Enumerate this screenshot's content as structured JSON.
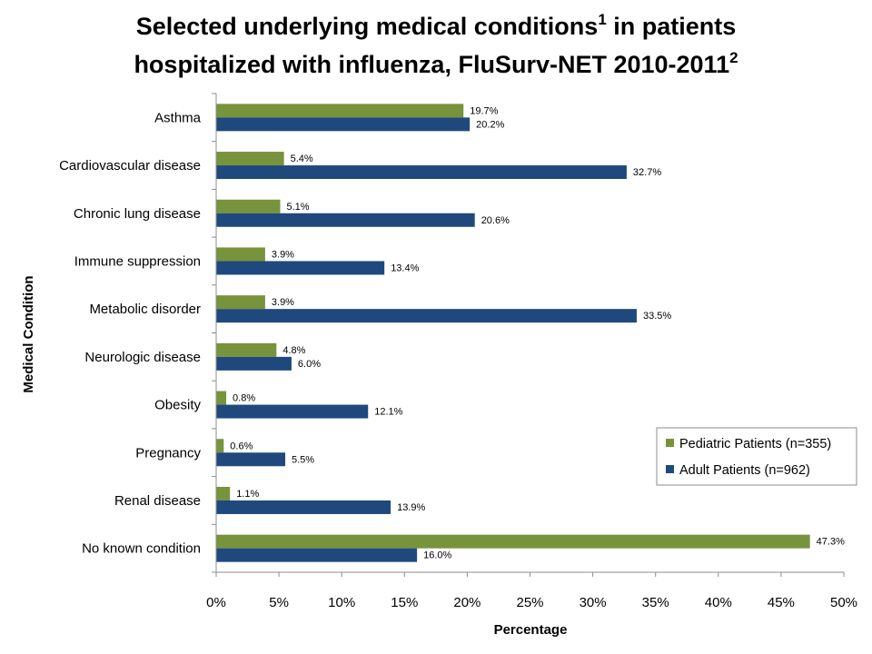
{
  "title": {
    "line1_text": "Selected underlying medical conditions",
    "line1_sup": "1",
    "line1_tail": " in patients",
    "line2_text": "hospitalized with influenza, FluSurv-NET 2010-2011",
    "line2_sup": "2"
  },
  "colors": {
    "pediatric": "#77933C",
    "adult": "#1F497D",
    "axis": "#8C8C8C"
  },
  "chart_data": {
    "type": "bar",
    "orientation": "horizontal",
    "title": "Selected underlying medical conditions1 in patients hospitalized with influenza, FluSurv-NET 2010-2011 2",
    "xlabel": "Percentage",
    "ylabel": "Medical Condition",
    "xlim": [
      0,
      50
    ],
    "x_ticks": [
      0,
      5,
      10,
      15,
      20,
      25,
      30,
      35,
      40,
      45,
      50
    ],
    "tick_suffix": "%",
    "grid": false,
    "legend_position": "right",
    "categories": [
      "Asthma",
      "Cardiovascular disease",
      "Chronic lung disease",
      "Immune suppression",
      "Metabolic disorder",
      "Neurologic disease",
      "Obesity",
      "Pregnancy",
      "Renal disease",
      "No known condition"
    ],
    "series": [
      {
        "name": "Pediatric Patients (n=355)",
        "values": [
          19.7,
          5.4,
          5.1,
          3.9,
          3.9,
          4.8,
          0.8,
          0.6,
          1.1,
          47.3
        ],
        "labels": [
          "19.7%",
          "5.4%",
          "5.1%",
          "3.9%",
          "3.9%",
          "4.8%",
          "0.8%",
          "0.6%",
          "1.1%",
          "47.3%"
        ]
      },
      {
        "name": "Adult Patients (n=962)",
        "values": [
          20.2,
          32.7,
          20.6,
          13.4,
          33.5,
          6.0,
          12.1,
          5.5,
          13.9,
          16.0
        ],
        "labels": [
          "20.2%",
          "32.7%",
          "20.6%",
          "13.4%",
          "33.5%",
          "6.0%",
          "12.1%",
          "5.5%",
          "13.9%",
          "16.0%"
        ]
      }
    ]
  }
}
